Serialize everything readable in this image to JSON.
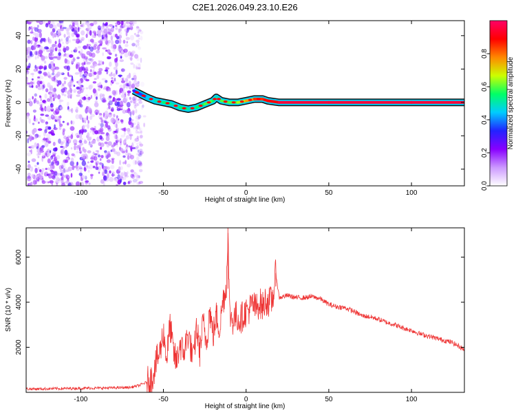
{
  "title": "C2E1.2026.049.23.10.E26",
  "chart_data": [
    {
      "type": "heatmap",
      "xlabel": "Height of straight line (km)",
      "ylabel": "Frequency (Hz)",
      "xlim": [
        -133,
        132
      ],
      "ylim": [
        -50,
        49
      ],
      "x_ticks": [
        -100,
        -50,
        0,
        50,
        100
      ],
      "y_ticks": [
        -40,
        -20,
        0,
        20,
        40
      ],
      "grid": false,
      "colorbar": {
        "label": "Normalized spectral amplitude",
        "range": [
          0.0,
          1.0
        ],
        "ticks": [
          0.0,
          0.2,
          0.4,
          0.6,
          0.8
        ],
        "colors": [
          "#ffffff",
          "#cc99ff",
          "#8800ff",
          "#2222ff",
          "#00ccff",
          "#00ff66",
          "#ccff00",
          "#ff8800",
          "#ff0000",
          "#ff0066"
        ]
      },
      "noise_region": {
        "x_range": [
          -133,
          -63
        ],
        "y_range": [
          -50,
          49
        ],
        "amplitude_range": [
          0.05,
          0.3
        ],
        "color": "#8800ff"
      },
      "ridge": {
        "x": [
          -68,
          -64,
          -60,
          -55,
          -50,
          -45,
          -40,
          -35,
          -30,
          -25,
          -20,
          -18,
          -15,
          -10,
          -5,
          0,
          5,
          10,
          13,
          20,
          50,
          100,
          132
        ],
        "y": [
          7,
          5,
          3,
          1,
          0,
          -1,
          -3,
          -4,
          -3,
          -1,
          1,
          3,
          1,
          0,
          0,
          1,
          2,
          2,
          1,
          0,
          0,
          0,
          0
        ],
        "amplitude": [
          0.3,
          0.35,
          0.45,
          0.5,
          0.55,
          0.5,
          0.55,
          0.5,
          0.55,
          0.6,
          0.55,
          0.5,
          0.6,
          0.6,
          0.65,
          0.75,
          0.85,
          0.85,
          0.9,
          0.95,
          0.95,
          0.95,
          0.95
        ]
      }
    },
    {
      "type": "line",
      "xlabel": "Height of straight line (km)",
      "ylabel": "SNR (10 * v/v)",
      "xlim": [
        -133,
        132
      ],
      "ylim": [
        0,
        7300
      ],
      "x_ticks": [
        -100,
        -50,
        0,
        50,
        100
      ],
      "y_ticks": [
        2000,
        4000,
        6000
      ],
      "grid": false,
      "series": [
        {
          "color": "#ee3333",
          "x": [
            -133,
            -120,
            -100,
            -80,
            -70,
            -65,
            -60,
            -57,
            -55,
            -52,
            -50,
            -48,
            -46,
            -44,
            -42,
            -40,
            -38,
            -35,
            -32,
            -30,
            -28,
            -26,
            -24,
            -22,
            -20,
            -18,
            -16,
            -14,
            -12,
            -11,
            -10,
            -8,
            -6,
            -4,
            -2,
            0,
            2,
            4,
            6,
            8,
            10,
            12,
            14,
            16,
            18,
            20,
            25,
            30,
            35,
            40,
            45,
            50,
            55,
            60,
            65,
            70,
            75,
            80,
            85,
            90,
            95,
            100,
            105,
            110,
            115,
            120,
            125,
            132
          ],
          "y": [
            150,
            160,
            180,
            200,
            220,
            300,
            450,
            600,
            1200,
            1800,
            2700,
            1500,
            3000,
            1800,
            1300,
            2200,
            1700,
            2600,
            1400,
            2900,
            1800,
            3100,
            2200,
            3700,
            2500,
            3400,
            2800,
            4100,
            4600,
            7300,
            3500,
            3200,
            3400,
            3200,
            3400,
            3600,
            3700,
            3900,
            3700,
            4000,
            3800,
            4100,
            4000,
            4100,
            5300,
            4200,
            4300,
            4200,
            4200,
            4250,
            4150,
            3900,
            3800,
            3750,
            3600,
            3400,
            3350,
            3250,
            3100,
            3000,
            2850,
            2750,
            2600,
            2500,
            2400,
            2300,
            2200,
            1900
          ]
        }
      ]
    }
  ]
}
